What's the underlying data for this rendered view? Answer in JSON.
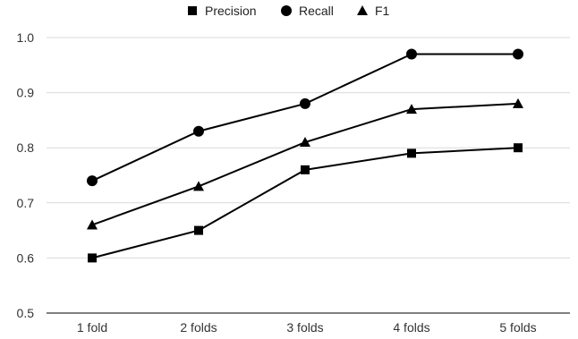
{
  "chart_data": {
    "type": "line",
    "title": "",
    "xlabel": "",
    "ylabel": "",
    "categories": [
      "1 fold",
      "2 folds",
      "3 folds",
      "4 folds",
      "5 folds"
    ],
    "ylim": [
      0.5,
      1.0
    ],
    "yticks": [
      "0.5",
      "0.6",
      "0.7",
      "0.8",
      "0.9",
      "1.0"
    ],
    "grid": true,
    "legend_position": "top",
    "series": [
      {
        "name": "Precision",
        "marker": "square",
        "color": "#000000",
        "values": [
          0.6,
          0.65,
          0.76,
          0.79,
          0.8
        ]
      },
      {
        "name": "Recall",
        "marker": "circle",
        "color": "#000000",
        "values": [
          0.74,
          0.83,
          0.88,
          0.97,
          0.97
        ]
      },
      {
        "name": "F1",
        "marker": "triangle",
        "color": "#000000",
        "values": [
          0.66,
          0.73,
          0.81,
          0.87,
          0.88
        ]
      }
    ]
  }
}
